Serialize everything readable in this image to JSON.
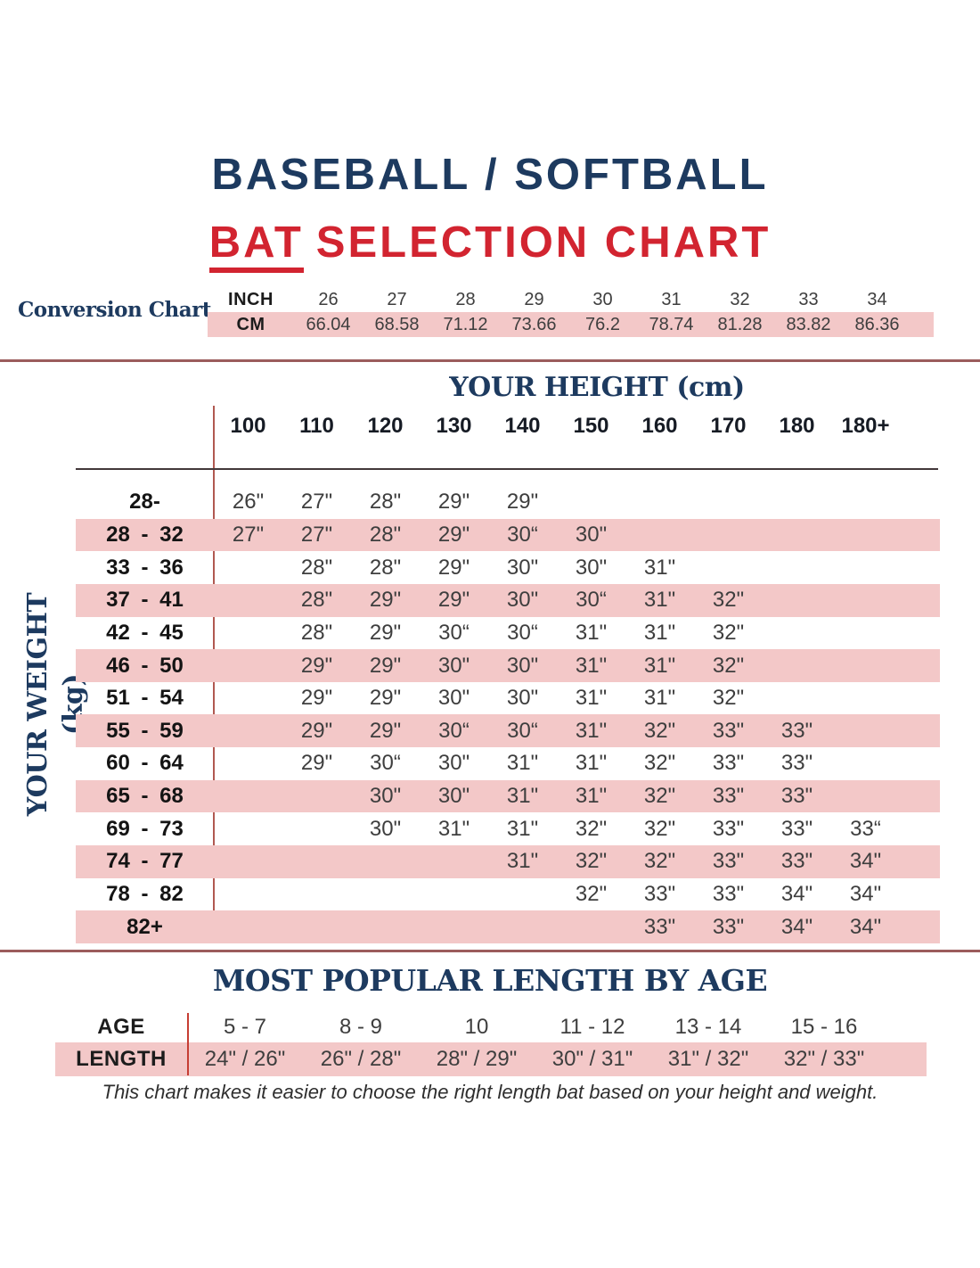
{
  "title": {
    "line1": "BASEBALL / SOFTBALL",
    "line2_word_underlined": "BAT",
    "line2_rest": "SELECTION CHART"
  },
  "footer_note": "This chart makes it easier to choose the right length bat based on your height and weight.",
  "colors": {
    "navy": "#1d3a5f",
    "red": "#d22430",
    "pink_row": "#f3c8c8",
    "divider_line": "#9b5c5c",
    "table_vertical_line": "#b15951",
    "age_vertical_line": "#c63d33",
    "cell_text": "#3e3e3e"
  },
  "chart_data": [
    {
      "type": "table",
      "label": "Conversion Chart",
      "rows": [
        {
          "label": "INCH",
          "values": [
            "26",
            "27",
            "28",
            "29",
            "30",
            "31",
            "32",
            "33",
            "34"
          ]
        },
        {
          "label": "CM",
          "values": [
            "66.04",
            "68.58",
            "71.12",
            "73.66",
            "76.2",
            "78.74",
            "81.28",
            "83.82",
            "86.36"
          ]
        }
      ]
    },
    {
      "type": "table",
      "col_axis_title": "YOUR HEIGHT (cm)",
      "row_axis_title": "YOUR WEIGHT (kg)",
      "columns": [
        "100",
        "110",
        "120",
        "130",
        "140",
        "150",
        "160",
        "170",
        "180",
        "180+"
      ],
      "rows": [
        {
          "weight": "28-",
          "values": [
            "26\"",
            "27\"",
            "28\"",
            "29\"",
            "29\"",
            "",
            "",
            "",
            "",
            ""
          ]
        },
        {
          "weight": "28 - 32",
          "values": [
            "27\"",
            "27\"",
            "28\"",
            "29\"",
            "30“",
            "30\"",
            "",
            "",
            "",
            ""
          ]
        },
        {
          "weight": "33 - 36",
          "values": [
            "",
            "28\"",
            "28\"",
            "29\"",
            "30\"",
            "30\"",
            "31\"",
            "",
            "",
            ""
          ]
        },
        {
          "weight": "37 - 41",
          "values": [
            "",
            "28\"",
            "29\"",
            "29\"",
            "30\"",
            "30“",
            "31\"",
            "32\"",
            "",
            ""
          ]
        },
        {
          "weight": "42 - 45",
          "values": [
            "",
            "28\"",
            "29\"",
            "30“",
            "30“",
            "31\"",
            "31\"",
            "32\"",
            "",
            ""
          ]
        },
        {
          "weight": "46 - 50",
          "values": [
            "",
            "29\"",
            "29\"",
            "30\"",
            "30\"",
            "31\"",
            "31\"",
            "32\"",
            "",
            ""
          ]
        },
        {
          "weight": "51 - 54",
          "values": [
            "",
            "29\"",
            "29\"",
            "30\"",
            "30\"",
            "31\"",
            "31\"",
            "32\"",
            "",
            ""
          ]
        },
        {
          "weight": "55 - 59",
          "values": [
            "",
            "29\"",
            "29\"",
            "30“",
            "30“",
            "31\"",
            "32\"",
            "33\"",
            "33\"",
            ""
          ]
        },
        {
          "weight": "60 - 64",
          "values": [
            "",
            "29\"",
            "30“",
            "30\"",
            "31\"",
            "31\"",
            "32\"",
            "33\"",
            "33\"",
            ""
          ]
        },
        {
          "weight": "65 - 68",
          "values": [
            "",
            "",
            "30\"",
            "30\"",
            "31\"",
            "31\"",
            "32\"",
            "33\"",
            "33\"",
            ""
          ]
        },
        {
          "weight": "69 - 73",
          "values": [
            "",
            "",
            "30\"",
            "31\"",
            "31\"",
            "32\"",
            "32\"",
            "33\"",
            "33\"",
            "33“"
          ]
        },
        {
          "weight": "74 - 77",
          "values": [
            "",
            "",
            "",
            "",
            "31\"",
            "32\"",
            "32\"",
            "33\"",
            "33\"",
            "34\""
          ]
        },
        {
          "weight": "78 - 82",
          "values": [
            "",
            "",
            "",
            "",
            "",
            "32\"",
            "33\"",
            "33\"",
            "34\"",
            "34\""
          ]
        },
        {
          "weight": "82+",
          "values": [
            "",
            "",
            "",
            "",
            "",
            "",
            "33\"",
            "33\"",
            "34\"",
            "34\""
          ]
        }
      ]
    },
    {
      "type": "table",
      "title": "MOST POPULAR LENGTH BY AGE",
      "rows": [
        {
          "label": "AGE",
          "values": [
            "5 - 7",
            "8 - 9",
            "10",
            "11 - 12",
            "13 - 14",
            "15 - 16"
          ]
        },
        {
          "label": "LENGTH",
          "values": [
            "24\" / 26\"",
            "26\" / 28\"",
            "28\" / 29\"",
            "30\" / 31\"",
            "31\" / 32\"",
            "32\" / 33\""
          ]
        }
      ]
    }
  ]
}
